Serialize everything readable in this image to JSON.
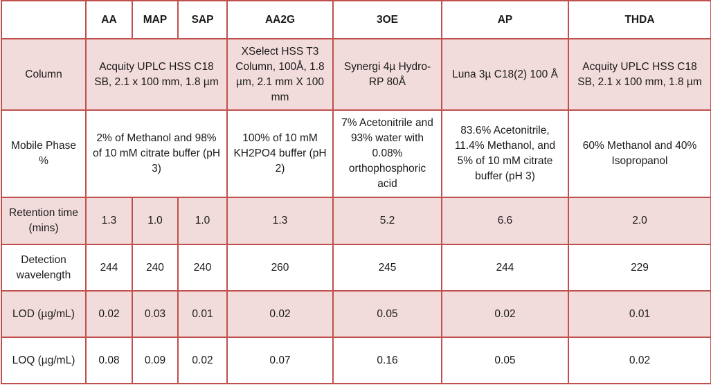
{
  "headers": [
    "",
    "AA",
    "MAP",
    "SAP",
    "AA2G",
    "3OE",
    "AP",
    "THDA"
  ],
  "rows": {
    "column": {
      "label": "Column",
      "aa_map_sap": "Acquity UPLC HSS C18 SB, 2.1 x 100 mm, 1.8 µm",
      "aa2g": "XSelect HSS T3 Column, 100Å, 1.8 µm, 2.1 mm X 100 mm",
      "oe3": "Synergi 4µ Hydro-RP 80Å",
      "ap": "Luna 3µ C18(2) 100 Å",
      "thda": "Acquity UPLC HSS C18 SB, 2.1 x 100 mm, 1.8 µm"
    },
    "mobile_phase": {
      "label": "Mobile Phase %",
      "aa_map_sap": "2% of Methanol and 98% of 10 mM citrate buffer (pH 3)",
      "aa2g": "100% of 10 mM KH2PO4 buffer (pH 2)",
      "oe3": "7% Acetonitrile and 93% water with 0.08% orthophosphoric acid",
      "ap": "83.6% Acetonitrile, 11.4% Methanol, and 5% of 10 mM citrate buffer (pH 3)",
      "thda": "60% Methanol and 40% Isopropanol"
    },
    "retention": {
      "label": "Retention time (mins)",
      "values": [
        "1.3",
        "1.0",
        "1.0",
        "1.3",
        "5.2",
        "6.6",
        "2.0"
      ]
    },
    "detection": {
      "label": "Detection wavelength",
      "values": [
        "244",
        "240",
        "240",
        "260",
        "245",
        "244",
        "229"
      ]
    },
    "lod": {
      "label": "LOD (µg/mL)",
      "values": [
        "0.02",
        "0.03",
        "0.01",
        "0.02",
        "0.05",
        "0.02",
        "0.01"
      ]
    },
    "loq": {
      "label": "LOQ (µg/mL)",
      "values": [
        "0.08",
        "0.09",
        "0.02",
        "0.07",
        "0.16",
        "0.05",
        "0.02"
      ]
    }
  }
}
